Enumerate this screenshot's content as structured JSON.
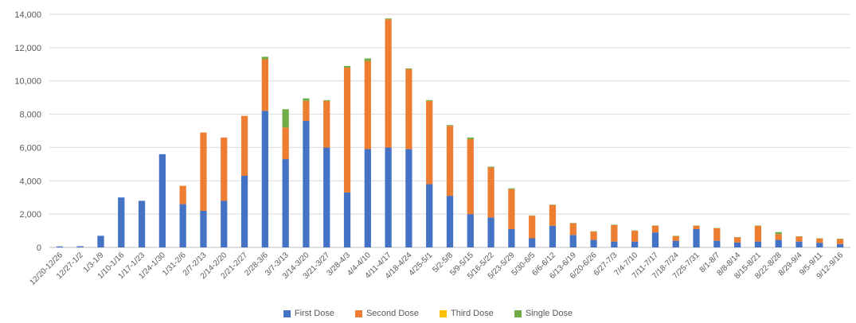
{
  "chart_data": {
    "type": "bar",
    "stacked": true,
    "categories": [
      "12/20-12/26",
      "12/27-1/2",
      "1/3-1/9",
      "1/10-1/16",
      "1/17-1/23",
      "1/24-1/30",
      "1/31-2/6",
      "2/7-2/13",
      "2/14-2/20",
      "2/21-2/27",
      "2/28-3/6",
      "3/7-3/13",
      "3/14-3/20",
      "3/21-3/27",
      "3/28-4/3",
      "4/4-4/10",
      "4/11-4/17",
      "4/18-4/24",
      "4/25-5/1",
      "5/2-5/8",
      "5/9-5/15",
      "5/16-5/22",
      "5/23-5/29",
      "5/30-6/5",
      "6/6-6/12",
      "6/13-6/19",
      "6/20-6/26",
      "6/27-7/3",
      "7/4-7/10",
      "7/11-7/17",
      "7/18-7/24",
      "7/25-7/31",
      "8/1-8/7",
      "8/8-8/14",
      "8/15-8/21",
      "8/22-8/28",
      "8/29-9/4",
      "9/5-9/11",
      "9/12-9/16"
    ],
    "series": [
      {
        "name": "First Dose",
        "values": [
          60,
          70,
          700,
          3000,
          2800,
          5600,
          2600,
          2200,
          2800,
          4300,
          8200,
          5300,
          7600,
          6000,
          3300,
          5900,
          6000,
          5900,
          3800,
          3100,
          2000,
          1800,
          1100,
          550,
          1300,
          750,
          450,
          350,
          350,
          900,
          400,
          1100,
          400,
          300,
          350,
          450,
          350,
          280,
          200
        ]
      },
      {
        "name": "Second Dose",
        "values": [
          0,
          0,
          0,
          0,
          0,
          0,
          1100,
          4700,
          3800,
          3600,
          3100,
          1900,
          1200,
          2800,
          7500,
          5300,
          7700,
          4800,
          5000,
          4200,
          4500,
          3000,
          2400,
          1350,
          1250,
          700,
          500,
          1000,
          650,
          400,
          280,
          200,
          750,
          300,
          950,
          350,
          300,
          250,
          300
        ]
      },
      {
        "name": "Third Dose",
        "values": [
          0,
          0,
          0,
          0,
          0,
          0,
          0,
          0,
          0,
          0,
          0,
          0,
          0,
          0,
          0,
          0,
          0,
          0,
          0,
          0,
          0,
          0,
          0,
          0,
          0,
          0,
          0,
          0,
          0,
          0,
          0,
          0,
          0,
          0,
          0,
          0,
          0,
          0,
          0
        ]
      },
      {
        "name": "Single Dose",
        "values": [
          0,
          0,
          0,
          0,
          0,
          0,
          0,
          0,
          0,
          0,
          150,
          1100,
          150,
          50,
          100,
          150,
          50,
          50,
          50,
          50,
          100,
          50,
          50,
          20,
          20,
          20,
          20,
          20,
          20,
          20,
          20,
          20,
          20,
          20,
          20,
          120,
          20,
          20,
          20
        ]
      }
    ],
    "colors": [
      "#4472C4",
      "#ED7D31",
      "#FFC000",
      "#70AD47"
    ],
    "ylim": [
      0,
      14000
    ],
    "yticks": [
      "0",
      "2,000",
      "4,000",
      "6,000",
      "8,000",
      "10,000",
      "12,000",
      "14,000"
    ],
    "grid": true,
    "legend_position": "bottom",
    "title": "",
    "xlabel": "",
    "ylabel": ""
  }
}
